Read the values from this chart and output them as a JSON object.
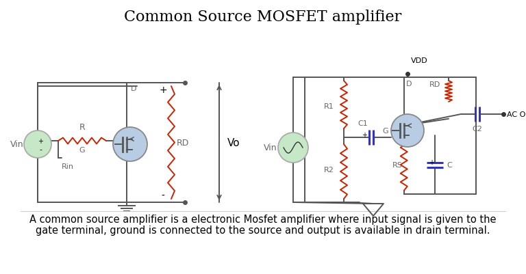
{
  "title": "Common Source MOSFET amplifier",
  "title_fontsize": 16,
  "bg_color": "#ffffff",
  "description_line1": "A common source amplifier is a electronic Mosfet amplifier where input signal is given to the",
  "description_line2": "gate terminal, ground is connected to the source and output is available in drain terminal.",
  "desc_fontsize": 10.5,
  "wire_color": "#555555",
  "resistor_color": "#cc2200",
  "mosfet_fill": "#b8cce4",
  "source_fill": "#c6e8c6",
  "capacitor_color": "#3333bb",
  "label_color": "#666666",
  "line_width": 1.4
}
